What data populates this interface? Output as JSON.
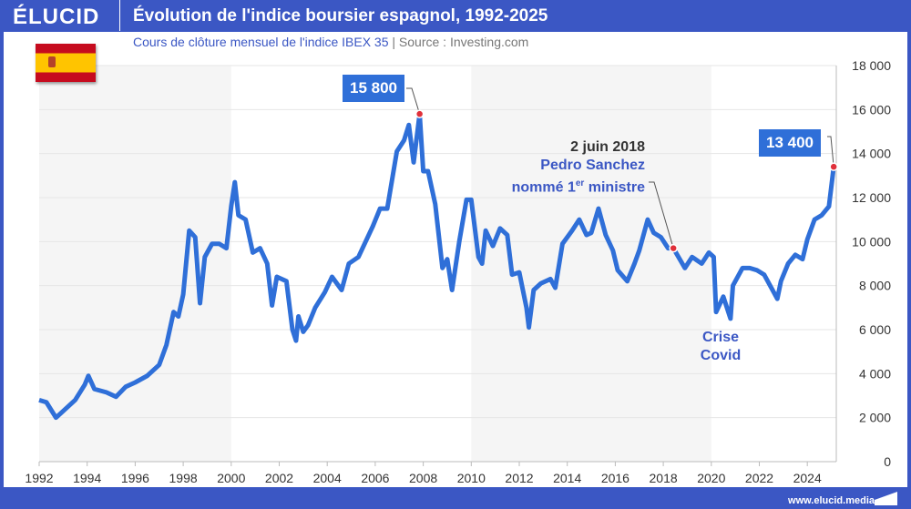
{
  "header": {
    "logo": "ÉLUCID",
    "title": "Évolution de l'indice boursier espagnol, 1992-2025"
  },
  "subtitle": {
    "text": "Cours de clôture mensuel de l'indice IBEX 35",
    "separator": "|",
    "source": "Source : Investing.com"
  },
  "flag": "spain-flag",
  "footer": {
    "url": "www.elucid.media"
  },
  "colors": {
    "brand": "#3b57c4",
    "line": "#2f6fd8",
    "marker": "#e0303a",
    "band": "#f5f5f5"
  },
  "chart_data": {
    "type": "line",
    "xlim": [
      1992,
      2025.2
    ],
    "ylim": [
      0,
      18000
    ],
    "x_ticks": [
      "1992",
      "1994",
      "1996",
      "1998",
      "2000",
      "2002",
      "2004",
      "2006",
      "2008",
      "2010",
      "2012",
      "2014",
      "2016",
      "2018",
      "2020",
      "2022",
      "2024"
    ],
    "y_ticks": [
      "0",
      "2 000",
      "4 000",
      "6 000",
      "8 000",
      "10 000",
      "12 000",
      "14 000",
      "16 000",
      "18 000"
    ],
    "y_axis_side": "right",
    "grid": "horizontal",
    "shaded_decades": [
      [
        1992,
        2000
      ],
      [
        2010,
        2020
      ]
    ],
    "series": [
      {
        "points": [
          [
            1992.0,
            2800
          ],
          [
            1992.3,
            2700
          ],
          [
            1992.7,
            2000
          ],
          [
            1993.0,
            2300
          ],
          [
            1993.5,
            2800
          ],
          [
            1993.9,
            3500
          ],
          [
            1994.05,
            3900
          ],
          [
            1994.3,
            3300
          ],
          [
            1994.8,
            3150
          ],
          [
            1995.2,
            2950
          ],
          [
            1995.6,
            3400
          ],
          [
            1996.0,
            3600
          ],
          [
            1996.5,
            3900
          ],
          [
            1997.0,
            4400
          ],
          [
            1997.3,
            5300
          ],
          [
            1997.6,
            6800
          ],
          [
            1997.8,
            6600
          ],
          [
            1998.0,
            7600
          ],
          [
            1998.25,
            10500
          ],
          [
            1998.5,
            10200
          ],
          [
            1998.7,
            7200
          ],
          [
            1998.9,
            9300
          ],
          [
            1999.2,
            9900
          ],
          [
            1999.5,
            9900
          ],
          [
            1999.8,
            9700
          ],
          [
            2000.0,
            11600
          ],
          [
            2000.15,
            12700
          ],
          [
            2000.3,
            11200
          ],
          [
            2000.6,
            11000
          ],
          [
            2000.9,
            9500
          ],
          [
            2001.2,
            9700
          ],
          [
            2001.5,
            9000
          ],
          [
            2001.7,
            7100
          ],
          [
            2001.9,
            8400
          ],
          [
            2002.3,
            8200
          ],
          [
            2002.55,
            6000
          ],
          [
            2002.7,
            5500
          ],
          [
            2002.8,
            6600
          ],
          [
            2003.0,
            5900
          ],
          [
            2003.2,
            6200
          ],
          [
            2003.5,
            7000
          ],
          [
            2003.9,
            7700
          ],
          [
            2004.2,
            8400
          ],
          [
            2004.6,
            7800
          ],
          [
            2004.9,
            9000
          ],
          [
            2005.3,
            9300
          ],
          [
            2005.9,
            10700
          ],
          [
            2006.2,
            11500
          ],
          [
            2006.5,
            11500
          ],
          [
            2006.9,
            14100
          ],
          [
            2007.2,
            14600
          ],
          [
            2007.4,
            15300
          ],
          [
            2007.6,
            13600
          ],
          [
            2007.85,
            15800
          ],
          [
            2008.0,
            13200
          ],
          [
            2008.2,
            13200
          ],
          [
            2008.5,
            11700
          ],
          [
            2008.8,
            8800
          ],
          [
            2009.0,
            9200
          ],
          [
            2009.2,
            7800
          ],
          [
            2009.5,
            10000
          ],
          [
            2009.8,
            11900
          ],
          [
            2010.0,
            11900
          ],
          [
            2010.3,
            9300
          ],
          [
            2010.45,
            9000
          ],
          [
            2010.6,
            10500
          ],
          [
            2010.9,
            9800
          ],
          [
            2011.2,
            10600
          ],
          [
            2011.5,
            10300
          ],
          [
            2011.7,
            8500
          ],
          [
            2012.0,
            8600
          ],
          [
            2012.3,
            7000
          ],
          [
            2012.4,
            6100
          ],
          [
            2012.6,
            7800
          ],
          [
            2012.9,
            8100
          ],
          [
            2013.3,
            8300
          ],
          [
            2013.5,
            7900
          ],
          [
            2013.8,
            9900
          ],
          [
            2014.2,
            10500
          ],
          [
            2014.5,
            11000
          ],
          [
            2014.8,
            10300
          ],
          [
            2015.0,
            10400
          ],
          [
            2015.3,
            11500
          ],
          [
            2015.6,
            10300
          ],
          [
            2015.9,
            9600
          ],
          [
            2016.1,
            8700
          ],
          [
            2016.5,
            8200
          ],
          [
            2016.8,
            9000
          ],
          [
            2017.0,
            9600
          ],
          [
            2017.35,
            11000
          ],
          [
            2017.6,
            10400
          ],
          [
            2017.9,
            10200
          ],
          [
            2018.2,
            9700
          ],
          [
            2018.42,
            9700
          ],
          [
            2018.9,
            8800
          ],
          [
            2019.2,
            9300
          ],
          [
            2019.6,
            9000
          ],
          [
            2019.9,
            9500
          ],
          [
            2020.1,
            9300
          ],
          [
            2020.2,
            6800
          ],
          [
            2020.5,
            7500
          ],
          [
            2020.8,
            6500
          ],
          [
            2020.9,
            8000
          ],
          [
            2021.3,
            8800
          ],
          [
            2021.6,
            8800
          ],
          [
            2021.9,
            8700
          ],
          [
            2022.2,
            8500
          ],
          [
            2022.5,
            7900
          ],
          [
            2022.75,
            7400
          ],
          [
            2022.9,
            8200
          ],
          [
            2023.2,
            9000
          ],
          [
            2023.5,
            9400
          ],
          [
            2023.8,
            9200
          ],
          [
            2024.0,
            10100
          ],
          [
            2024.3,
            11000
          ],
          [
            2024.6,
            11200
          ],
          [
            2024.9,
            11600
          ],
          [
            2025.1,
            13400
          ]
        ]
      }
    ],
    "annotations": [
      {
        "label": "15 800",
        "x": 2007.85,
        "y": 15800
      },
      {
        "label": "13 400",
        "x": 2025.1,
        "y": 13400
      },
      {
        "line1": "2 juin 2018",
        "line2": "Pedro Sanchez",
        "line3a": "nommé 1",
        "line3sup": "er",
        "line3b": " ministre",
        "x": 2018.42,
        "y": 9700
      },
      {
        "line1": "Crise",
        "line2": "Covid"
      }
    ]
  }
}
